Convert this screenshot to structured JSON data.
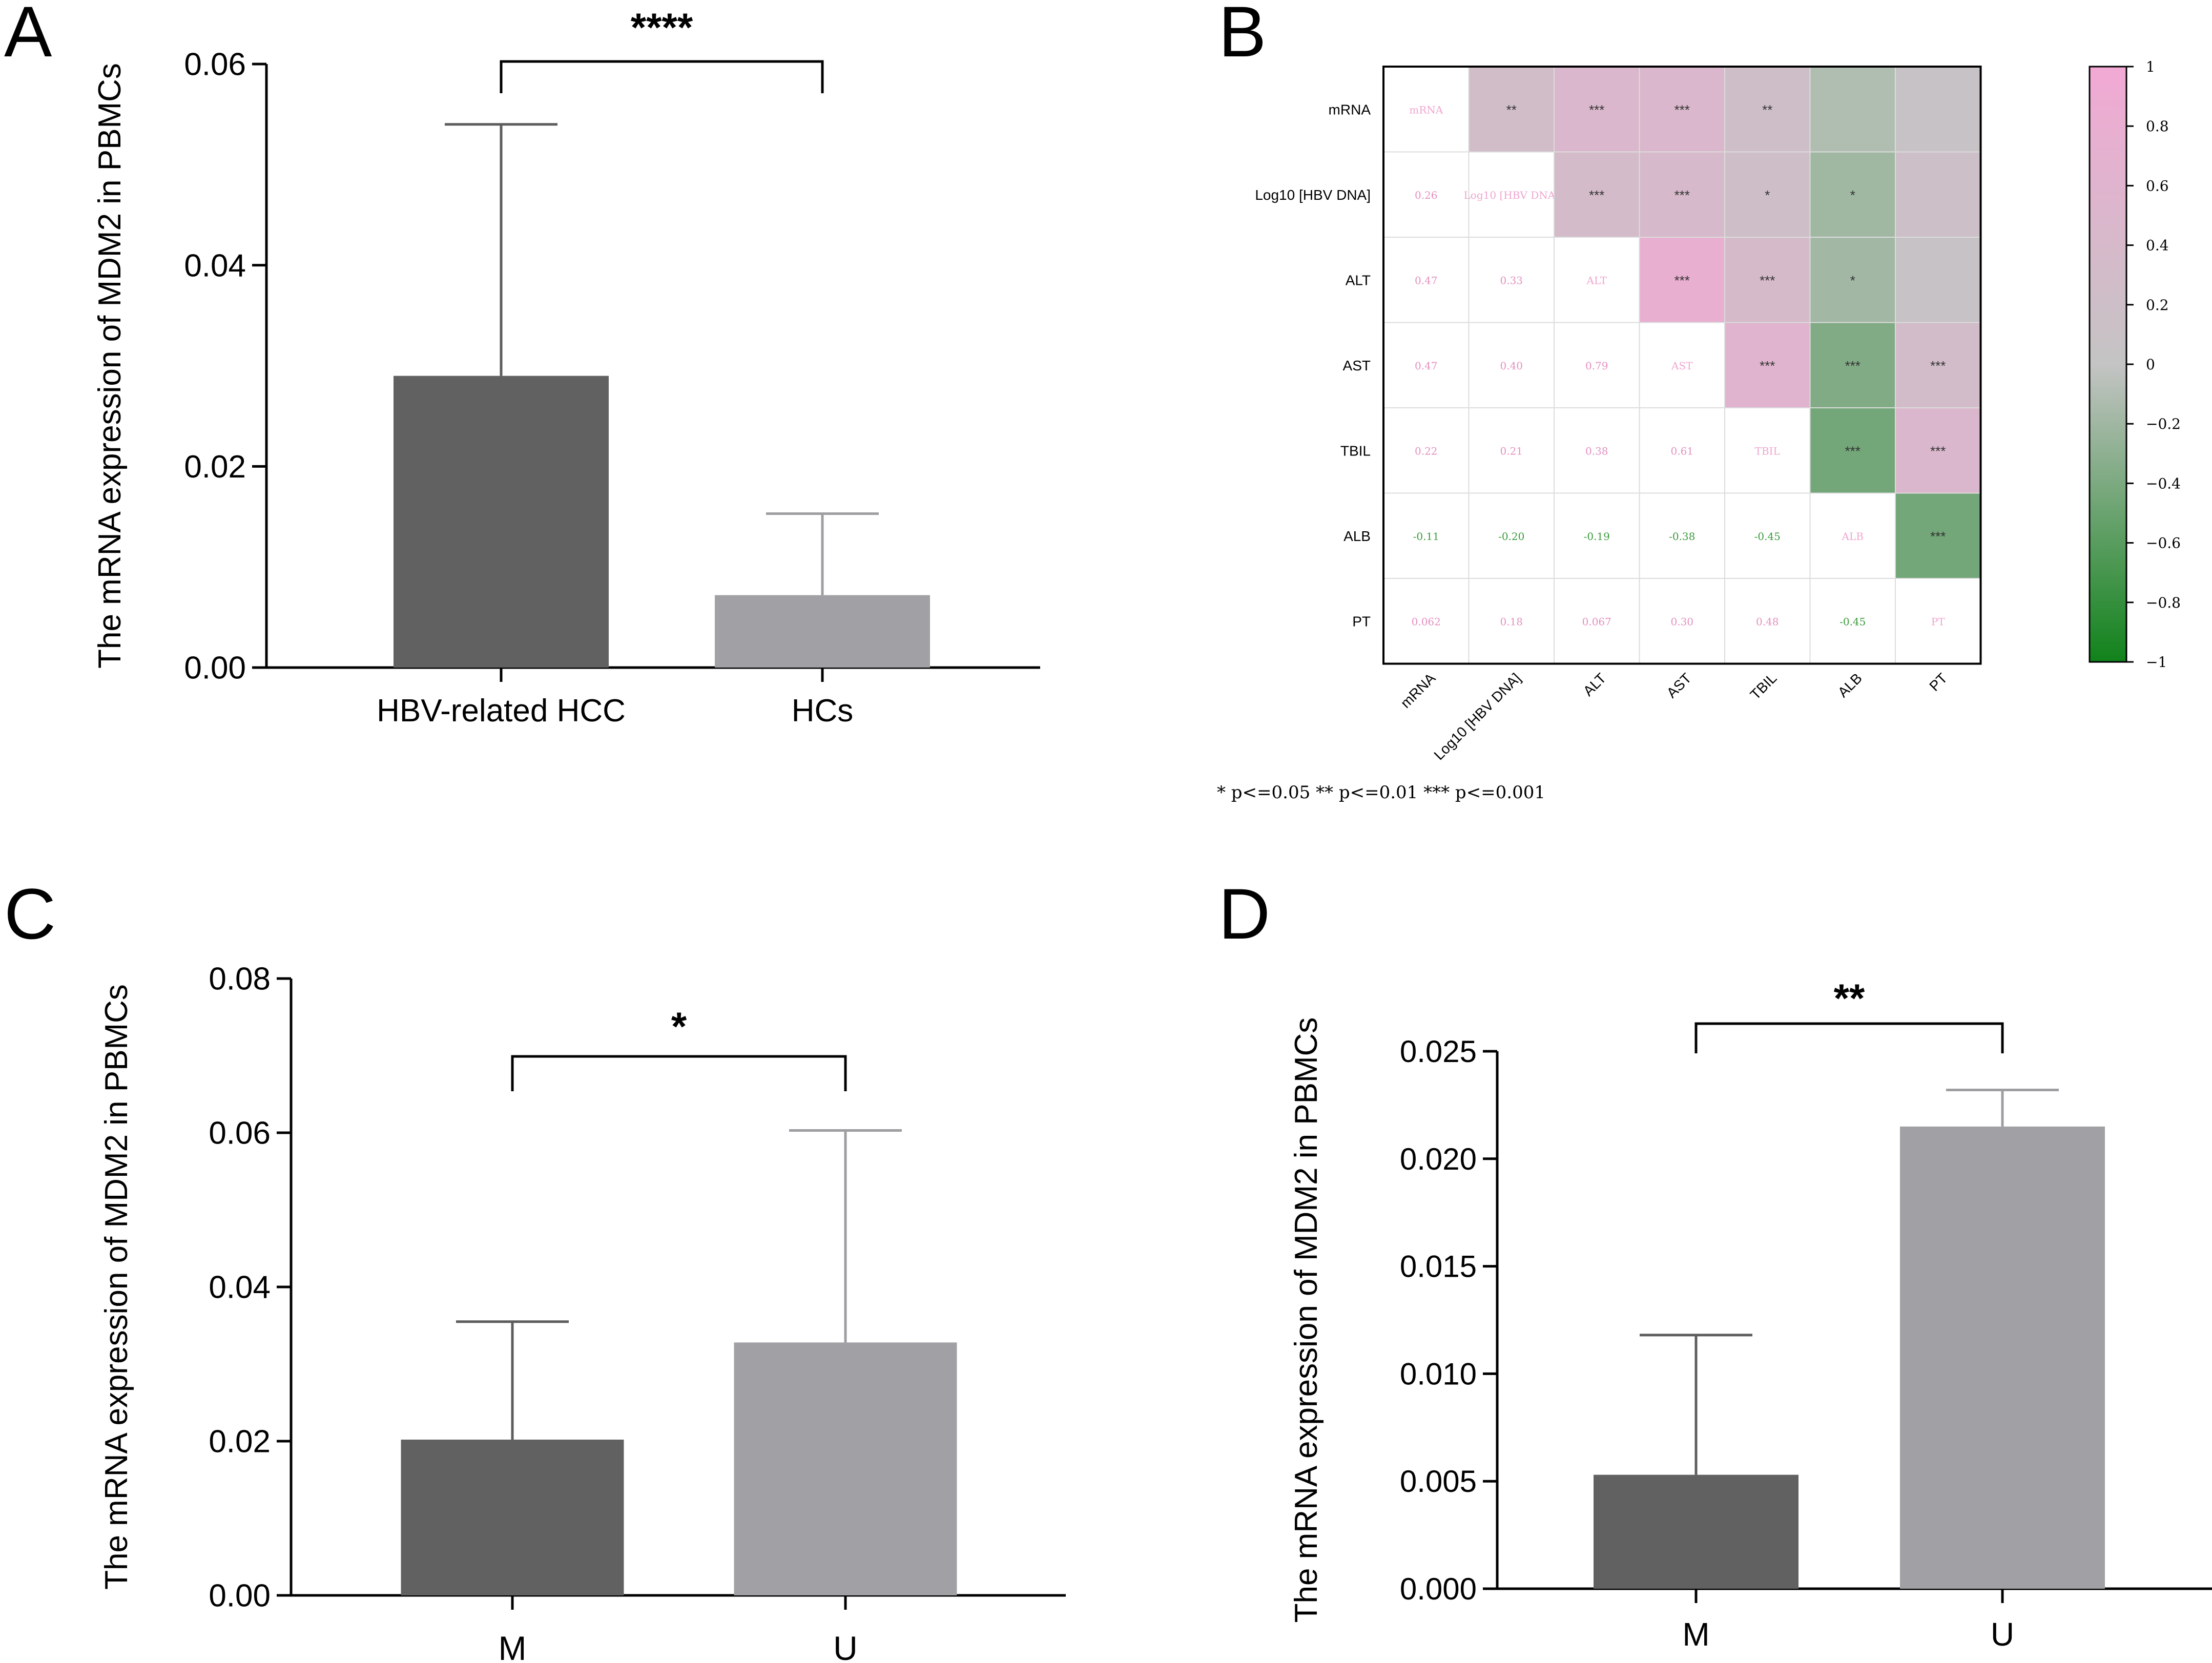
{
  "chart_data": [
    {
      "panel": "A",
      "type": "bar",
      "ylabel": "The mRNA expression of MDM2 in PBMCs",
      "ylim": [
        0,
        0.06
      ],
      "yticks": [
        "0.00",
        "0.02",
        "0.04",
        "0.06"
      ],
      "categories": [
        "HBV-related HCC",
        "HCs"
      ],
      "values": [
        0.029,
        0.0072
      ],
      "error_upper": [
        0.054,
        0.0153
      ],
      "bar_colors": [
        "#616161",
        "#a1a1a5"
      ],
      "significance": "****"
    },
    {
      "panel": "B",
      "type": "heatmap",
      "labels": [
        "mRNA",
        "Log10 [HBV DNA]",
        "ALT",
        "AST",
        "TBIL",
        "ALB",
        "PT"
      ],
      "upper_stars": [
        [
          "",
          "**",
          "***",
          "***",
          "**",
          "",
          ""
        ],
        [
          "",
          "",
          "***",
          "***",
          "*",
          "*",
          ""
        ],
        [
          "",
          "",
          "",
          "***",
          "***",
          "*",
          ""
        ],
        [
          "",
          "",
          "",
          "",
          "***",
          "***",
          "***"
        ],
        [
          "",
          "",
          "",
          "",
          "",
          "***",
          "***"
        ],
        [
          "",
          "",
          "",
          "",
          "",
          "",
          "***"
        ],
        [
          "",
          "",
          "",
          "",
          "",
          "",
          ""
        ]
      ],
      "lower_values": [
        [
          "",
          "",
          "",
          "",
          "",
          "",
          ""
        ],
        [
          "0.26",
          "",
          "",
          "",
          "",
          "",
          ""
        ],
        [
          "0.47",
          "0.33",
          "",
          "",
          "",
          "",
          ""
        ],
        [
          "0.47",
          "0.40",
          "0.79",
          "",
          "",
          "",
          ""
        ],
        [
          "0.22",
          "0.21",
          "0.38",
          "0.61",
          "",
          "",
          ""
        ],
        [
          "-0.11",
          "-0.20",
          "-0.19",
          "-0.38",
          "-0.45",
          "",
          ""
        ],
        [
          "0.062",
          "0.18",
          "0.067",
          "0.30",
          "0.48",
          "-0.45",
          ""
        ]
      ],
      "correlations": [
        [
          1.0,
          0.26,
          0.47,
          0.47,
          0.22,
          -0.11,
          0.062
        ],
        [
          0.26,
          1.0,
          0.33,
          0.4,
          0.21,
          -0.2,
          0.18
        ],
        [
          0.47,
          0.33,
          1.0,
          0.79,
          0.38,
          -0.19,
          0.067
        ],
        [
          0.47,
          0.4,
          0.79,
          1.0,
          0.61,
          -0.38,
          0.3
        ],
        [
          0.22,
          0.21,
          0.38,
          0.61,
          1.0,
          -0.45,
          0.48
        ],
        [
          -0.11,
          -0.2,
          -0.19,
          -0.38,
          -0.45,
          1.0,
          -0.45
        ],
        [
          0.062,
          0.18,
          0.067,
          0.3,
          0.48,
          -0.45,
          1.0
        ]
      ],
      "colorbar_ticks": [
        "1",
        "0.8",
        "0.6",
        "0.4",
        "0.2",
        "0",
        "−0.2",
        "−0.4",
        "−0.6",
        "−0.8",
        "−1"
      ],
      "colorbar_range": [
        -1,
        1
      ],
      "legend_text": "* p<=0.05   ** p<=0.01   *** p<=0.001",
      "color_positive": "#f2a9d4",
      "color_negative": "#11821b",
      "color_zero": "#c4c4c4"
    },
    {
      "panel": "C",
      "type": "bar",
      "ylabel": "The mRNA expression of MDM2 in PBMCs",
      "ylim": [
        0,
        0.08
      ],
      "yticks": [
        "0.00",
        "0.02",
        "0.04",
        "0.06",
        "0.08"
      ],
      "categories": [
        "M",
        "U"
      ],
      "values": [
        0.0202,
        0.0328
      ],
      "error_upper": [
        0.0355,
        0.0603
      ],
      "bar_colors": [
        "#616161",
        "#a1a1a5"
      ],
      "significance": "*"
    },
    {
      "panel": "D",
      "type": "bar",
      "ylabel": "The mRNA expression of MDM2 in PBMCs",
      "ylim": [
        0,
        0.025
      ],
      "yticks": [
        "0.000",
        "0.005",
        "0.010",
        "0.015",
        "0.020",
        "0.025"
      ],
      "categories": [
        "M",
        "U"
      ],
      "values": [
        0.0053,
        0.0215
      ],
      "error_upper": [
        0.0118,
        0.0232
      ],
      "bar_colors": [
        "#616161",
        "#a1a1a5"
      ],
      "significance": "**"
    }
  ]
}
